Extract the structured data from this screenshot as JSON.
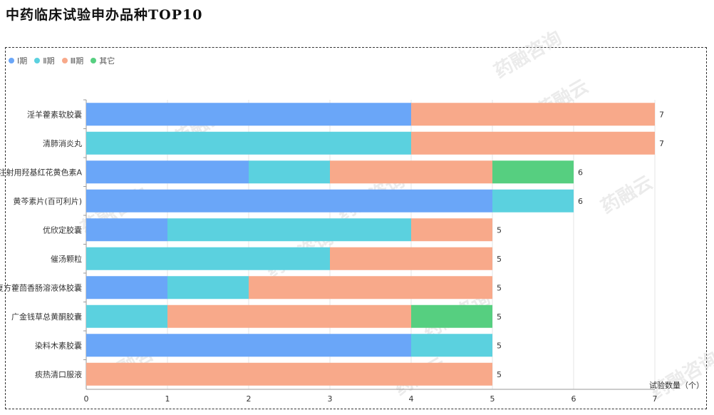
{
  "title": "中药临床试验申办品种TOP10",
  "watermark_text": "药融咨询",
  "watermark_text_alt": "药融云",
  "colors": {
    "phase1": "#6aa6f8",
    "phase2": "#5bd1df",
    "phase3": "#f8a98a",
    "other": "#56cf80"
  },
  "chart_data": {
    "type": "bar",
    "orientation": "horizontal",
    "stacked": true,
    "categories": [
      "淫羊藿素软胶囊",
      "清肺消炎丸",
      "注射用羟基红花黄色素A",
      "黄芩素片(百可利片)",
      "优欣定胶囊",
      "催汤颗粒",
      "复方藿茴香肠溶液体胶囊",
      "广金钱草总黄酮胶囊",
      "染料木素胶囊",
      "痰热清口服液"
    ],
    "series": [
      {
        "name": "Ⅰ期",
        "color": "#6aa6f8",
        "values": [
          4,
          0,
          2,
          5,
          1,
          0,
          1,
          0,
          4,
          0
        ]
      },
      {
        "name": "Ⅱ期",
        "color": "#5bd1df",
        "values": [
          0,
          4,
          1,
          1,
          3,
          3,
          1,
          1,
          1,
          0
        ]
      },
      {
        "name": "Ⅲ期",
        "color": "#f8a98a",
        "values": [
          3,
          3,
          2,
          0,
          1,
          2,
          3,
          3,
          0,
          5
        ]
      },
      {
        "name": "其它",
        "color": "#56cf80",
        "values": [
          0,
          0,
          1,
          0,
          0,
          0,
          0,
          1,
          0,
          0
        ]
      }
    ],
    "totals": [
      7,
      7,
      6,
      6,
      5,
      5,
      5,
      5,
      5,
      5
    ],
    "xlabel": "试验数量（个）",
    "ylabel": "",
    "xlim": [
      0,
      7
    ],
    "xticks": [
      0,
      1,
      2,
      3,
      4,
      5,
      6,
      7
    ],
    "grid": true,
    "legend": "top-left"
  }
}
